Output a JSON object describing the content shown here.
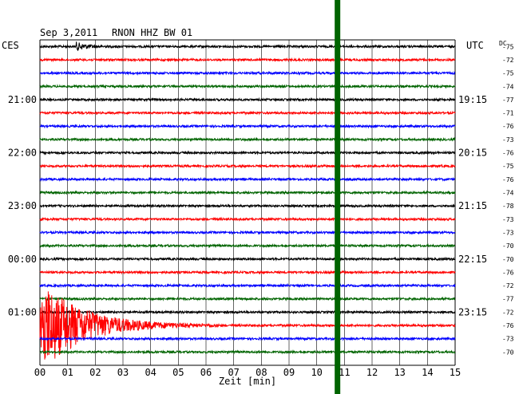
{
  "header": {
    "date": "Sep 3,2011",
    "station": "RNON HHZ BW 01",
    "left_zone": "CES",
    "right_zone": "UTC",
    "dc_label": "DC"
  },
  "chart_data": {
    "type": "line",
    "title": "Sep 3,2011   RNON HHZ BW 01",
    "xlabel": "Zeit [min]",
    "xlim": [
      0,
      15
    ],
    "x_ticks": [
      "00",
      "01",
      "02",
      "03",
      "04",
      "05",
      "06",
      "07",
      "08",
      "09",
      "10",
      "11",
      "12",
      "13",
      "14",
      "15"
    ],
    "row_count": 24,
    "row_colors": [
      "#000000",
      "#ff0000",
      "#0000ff",
      "#006400"
    ],
    "left_time_labels": [
      {
        "row": 4,
        "text": "21:00"
      },
      {
        "row": 8,
        "text": "22:00"
      },
      {
        "row": 12,
        "text": "23:00"
      },
      {
        "row": 16,
        "text": "00:00"
      },
      {
        "row": 20,
        "text": "01:00"
      }
    ],
    "right_time_labels": [
      {
        "row": 4,
        "text": "19:15"
      },
      {
        "row": 8,
        "text": "20:15"
      },
      {
        "row": 12,
        "text": "21:15"
      },
      {
        "row": 16,
        "text": "22:15"
      },
      {
        "row": 20,
        "text": "23:15"
      }
    ],
    "dc_offsets": [
      "-75",
      "-72",
      "-75",
      "-74",
      "-77",
      "-71",
      "-76",
      "-73",
      "-76",
      "-75",
      "-76",
      "-74",
      "-78",
      "-73",
      "-73",
      "-70",
      "-70",
      "-76",
      "-72",
      "-77",
      "-72",
      "-76",
      "-73",
      "-70"
    ],
    "marker": {
      "minute": 10.75,
      "color": "#006400",
      "label": "green vertical bar"
    },
    "events": [
      {
        "row": 21,
        "start_min": 0.0,
        "peak_amplitude": "large",
        "decay_to_min": 6.5
      },
      {
        "row": 0,
        "start_min": 1.3,
        "peak_amplitude": "small",
        "decay_to_min": 3.0
      }
    ]
  }
}
